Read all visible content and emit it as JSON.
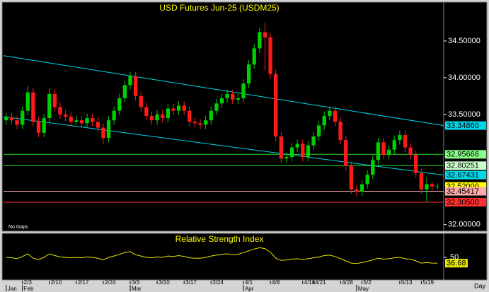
{
  "chart_data": {
    "type": "candlestick",
    "title": "USD Futures Jun-25 (USDM25)",
    "note": "No Gaps",
    "period": "Day",
    "categories": [
      null,
      null,
      null,
      "2/3",
      null,
      null,
      null,
      null,
      "2/10",
      null,
      null,
      null,
      null,
      "2/17",
      null,
      null,
      null,
      null,
      "2/24",
      null,
      null,
      null,
      null,
      "3/3",
      null,
      null,
      null,
      null,
      "3/10",
      null,
      null,
      null,
      null,
      "3/17",
      null,
      null,
      null,
      null,
      "3/24",
      null,
      null,
      null,
      null,
      null,
      "4/1",
      null,
      null,
      null,
      null,
      "4/8",
      null,
      null,
      null,
      null,
      null,
      "4/16",
      null,
      "4/21",
      null,
      null,
      null,
      null,
      "4/28",
      null,
      null,
      null,
      "5/2",
      null,
      null,
      null,
      null,
      null,
      null,
      "5/13",
      null,
      null,
      null,
      "5/19",
      null,
      null,
      null
    ],
    "months": [
      {
        "label": "Jan",
        "index": 0
      },
      {
        "label": "Feb",
        "index": 3
      },
      {
        "label": "Mar",
        "index": 23
      },
      {
        "label": "Apr",
        "index": 44
      },
      {
        "label": "May",
        "index": 65
      }
    ],
    "open": [
      33.42,
      33.46,
      33.42,
      33.36,
      33.55,
      33.8,
      33.4,
      33.25,
      33.45,
      33.78,
      33.6,
      33.5,
      33.47,
      33.4,
      33.42,
      33.38,
      33.45,
      33.4,
      33.32,
      33.18,
      33.42,
      33.55,
      33.72,
      33.9,
      34.02,
      33.75,
      33.6,
      33.48,
      33.42,
      33.5,
      33.45,
      33.58,
      33.55,
      33.62,
      33.55,
      33.4,
      33.38,
      33.36,
      33.42,
      33.55,
      33.65,
      33.72,
      33.78,
      33.7,
      33.72,
      33.92,
      34.18,
      34.4,
      34.62,
      34.55,
      34.05,
      33.2,
      32.9,
      32.92,
      33.05,
      33.1,
      32.92,
      33.08,
      33.2,
      33.35,
      33.48,
      33.55,
      33.4,
      33.15,
      32.8,
      32.48,
      32.45,
      32.55,
      32.68,
      32.88,
      33.12,
      32.95,
      33.02,
      33.15,
      33.22,
      33.05,
      32.95,
      32.7,
      32.48,
      32.55,
      32.52
    ],
    "high": [
      33.52,
      33.52,
      33.48,
      33.61,
      33.88,
      33.86,
      33.46,
      33.51,
      33.86,
      33.84,
      33.66,
      33.56,
      33.53,
      33.48,
      33.48,
      33.51,
      33.51,
      33.46,
      33.38,
      33.48,
      33.61,
      33.78,
      33.96,
      34.08,
      34.08,
      33.81,
      33.66,
      33.54,
      33.56,
      33.56,
      33.64,
      33.64,
      33.68,
      33.68,
      33.61,
      33.46,
      33.44,
      33.48,
      33.61,
      33.71,
      33.78,
      33.84,
      33.84,
      33.78,
      33.98,
      34.24,
      34.46,
      34.68,
      34.75,
      34.61,
      34.11,
      33.26,
      32.98,
      33.11,
      33.16,
      33.16,
      33.14,
      33.26,
      33.41,
      33.54,
      33.61,
      33.61,
      33.46,
      33.21,
      32.86,
      32.54,
      32.61,
      32.74,
      32.94,
      33.18,
      33.18,
      33.08,
      33.21,
      33.28,
      33.28,
      33.11,
      33.01,
      32.76,
      32.65,
      32.58,
      32.56
    ],
    "low": [
      33.36,
      33.36,
      33.3,
      33.3,
      33.49,
      33.34,
      33.19,
      33.19,
      33.39,
      33.54,
      33.44,
      33.41,
      33.34,
      33.36,
      33.32,
      33.32,
      33.34,
      33.26,
      33.1,
      33.12,
      33.36,
      33.49,
      33.66,
      33.84,
      33.69,
      33.54,
      33.42,
      33.36,
      33.36,
      33.39,
      33.39,
      33.49,
      33.49,
      33.49,
      33.34,
      33.32,
      33.3,
      33.3,
      33.36,
      33.49,
      33.59,
      33.66,
      33.64,
      33.64,
      33.66,
      33.86,
      34.12,
      34.34,
      34.1,
      33.99,
      33.14,
      32.84,
      32.84,
      32.86,
      32.99,
      32.86,
      32.86,
      33.02,
      33.14,
      33.29,
      33.42,
      33.34,
      33.09,
      32.74,
      32.42,
      32.39,
      32.39,
      32.49,
      32.62,
      32.82,
      32.89,
      32.89,
      32.96,
      33.09,
      32.99,
      32.89,
      32.64,
      32.42,
      32.3,
      32.46,
      32.48
    ],
    "close": [
      33.46,
      33.42,
      33.36,
      33.55,
      33.8,
      33.4,
      33.25,
      33.45,
      33.78,
      33.6,
      33.5,
      33.47,
      33.4,
      33.42,
      33.38,
      33.45,
      33.4,
      33.32,
      33.18,
      33.42,
      33.55,
      33.72,
      33.9,
      34.02,
      33.75,
      33.6,
      33.48,
      33.42,
      33.5,
      33.45,
      33.58,
      33.55,
      33.62,
      33.55,
      33.4,
      33.38,
      33.36,
      33.42,
      33.55,
      33.65,
      33.72,
      33.78,
      33.7,
      33.72,
      33.92,
      34.18,
      34.4,
      34.62,
      34.55,
      34.05,
      33.2,
      32.9,
      32.92,
      33.05,
      33.1,
      32.92,
      33.08,
      33.2,
      33.35,
      33.48,
      33.55,
      33.4,
      33.15,
      32.8,
      32.48,
      32.45,
      32.55,
      32.68,
      32.88,
      33.12,
      32.95,
      33.02,
      33.15,
      33.22,
      33.05,
      32.95,
      32.7,
      32.48,
      32.55,
      32.52,
      32.52
    ],
    "up_color": "#00d000",
    "down_color": "#ff1a1a",
    "ylim": [
      31.92,
      35.01
    ],
    "yticks": [
      {
        "value": 34.5,
        "label": "34.50000"
      },
      {
        "value": 34.0,
        "label": "34.00000"
      },
      {
        "value": 33.5,
        "label": "33.50000"
      },
      {
        "value": 32.0,
        "label": "32.00000"
      }
    ],
    "trendlines": [
      {
        "from": 34.3,
        "to": {
          "value": 33.3486,
          "label": "33.34860"
        },
        "color": "#00d8e8"
      },
      {
        "from": 33.47,
        "to": {
          "value": 32.67431,
          "label": "32.67431"
        },
        "color": "#00d8e8"
      }
    ],
    "levels": [
      {
        "value": 32.95666,
        "color": "#22dd22",
        "box": "#88ff88"
      },
      {
        "value": 32.80251,
        "color": "#22dd22",
        "box": "#ccffcc"
      },
      {
        "value": 32.45417,
        "color": "#ffaaaa",
        "box": "#ffaaaa"
      },
      {
        "value": 32.305,
        "label": "32.30500",
        "color": "#ff3030",
        "box": "#ff3030"
      }
    ],
    "last_price": {
      "value": 32.52,
      "label": "32.52000",
      "box": "#ffff00"
    },
    "rsi": {
      "title": "Relative Strength Index",
      "color": "#e8e800",
      "ylim": [
        0,
        100
      ],
      "yticks": [
        50
      ],
      "values": [
        50,
        49,
        47,
        52,
        58,
        48,
        45,
        50,
        58,
        54,
        51,
        50,
        49,
        50,
        49,
        51,
        50,
        48,
        44,
        50,
        53,
        57,
        61,
        63,
        56,
        53,
        50,
        49,
        51,
        50,
        53,
        52,
        54,
        52,
        49,
        48,
        48,
        50,
        53,
        55,
        57,
        58,
        56,
        57,
        61,
        65,
        69,
        72,
        70,
        62,
        48,
        43,
        44,
        46,
        47,
        45,
        47,
        49,
        51,
        54,
        55,
        52,
        47,
        42,
        37,
        36,
        38,
        41,
        44,
        48,
        46,
        47,
        49,
        50,
        47,
        46,
        42,
        37,
        38,
        37,
        36.68
      ]
    }
  }
}
